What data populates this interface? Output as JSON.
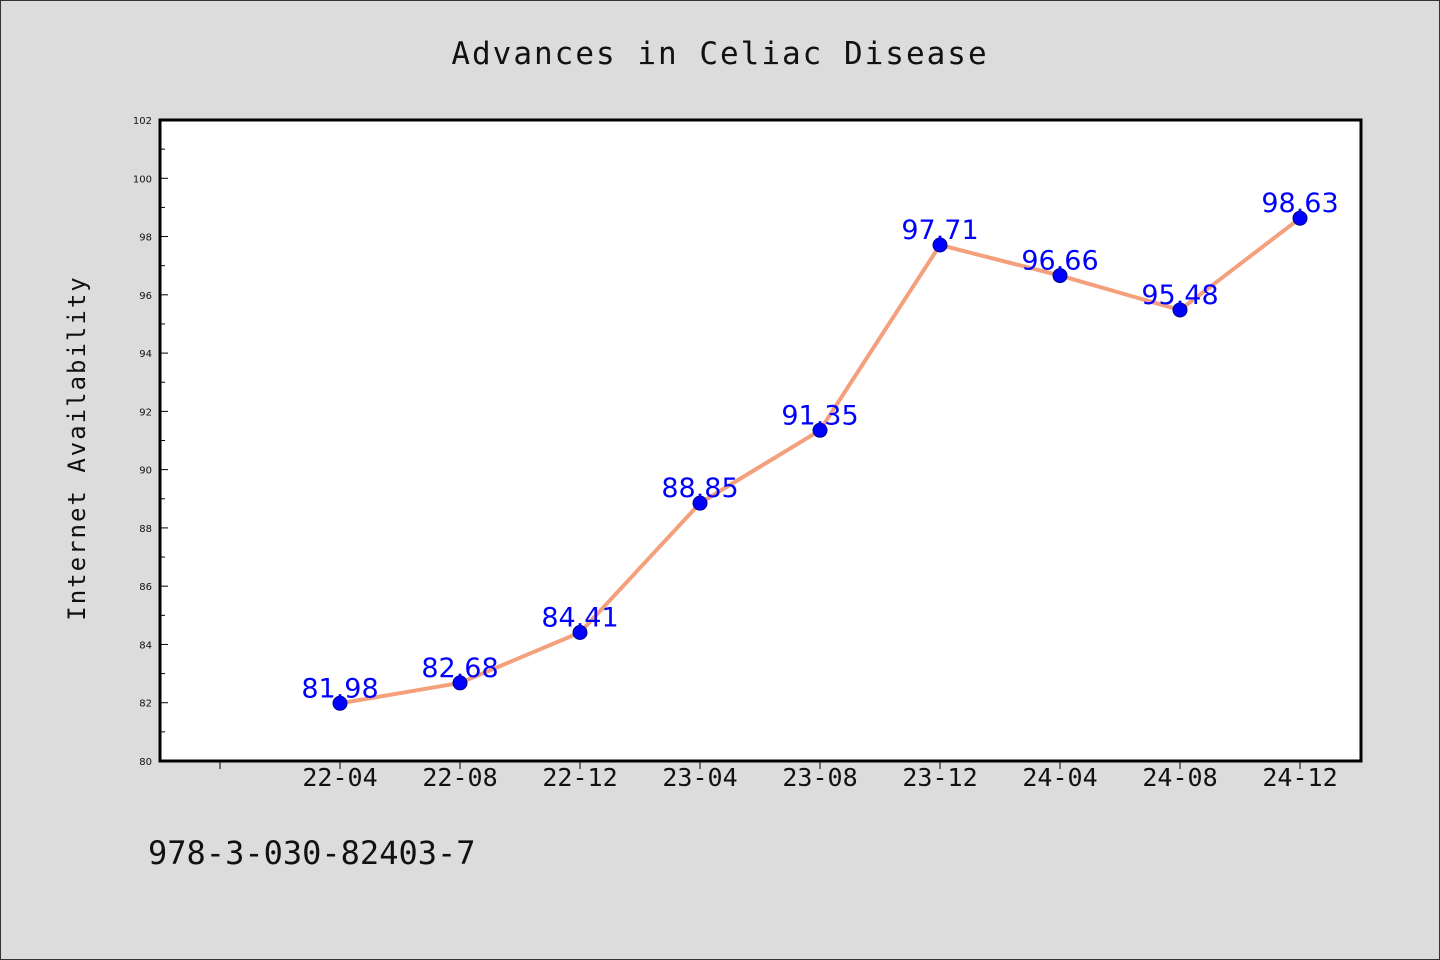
{
  "chart_data": {
    "type": "line",
    "title": "Advances in Celiac Disease",
    "xlabel": "",
    "ylabel": "Internet Availability",
    "categories": [
      "22-04",
      "22-08",
      "22-12",
      "23-04",
      "23-08",
      "23-12",
      "24-04",
      "24-08",
      "24-12"
    ],
    "series": [
      {
        "values": [
          81.98,
          82.68,
          84.41,
          88.85,
          91.35,
          97.71,
          96.66,
          95.48,
          98.63
        ],
        "labels": [
          "81.98",
          "82.68",
          "84.41",
          "88.85",
          "91.35",
          "97.71",
          "96.66",
          "95.48",
          "98.63"
        ],
        "line_color": "#f4a07c",
        "marker_color": "#0000ff"
      }
    ],
    "ylim": [
      80,
      102
    ],
    "yticks": [
      "80",
      "82",
      "84",
      "86",
      "88",
      "90",
      "92",
      "94",
      "96",
      "98",
      "100",
      "102"
    ],
    "grid": false,
    "legend": "none",
    "footnote": "978-3-030-82403-7"
  }
}
